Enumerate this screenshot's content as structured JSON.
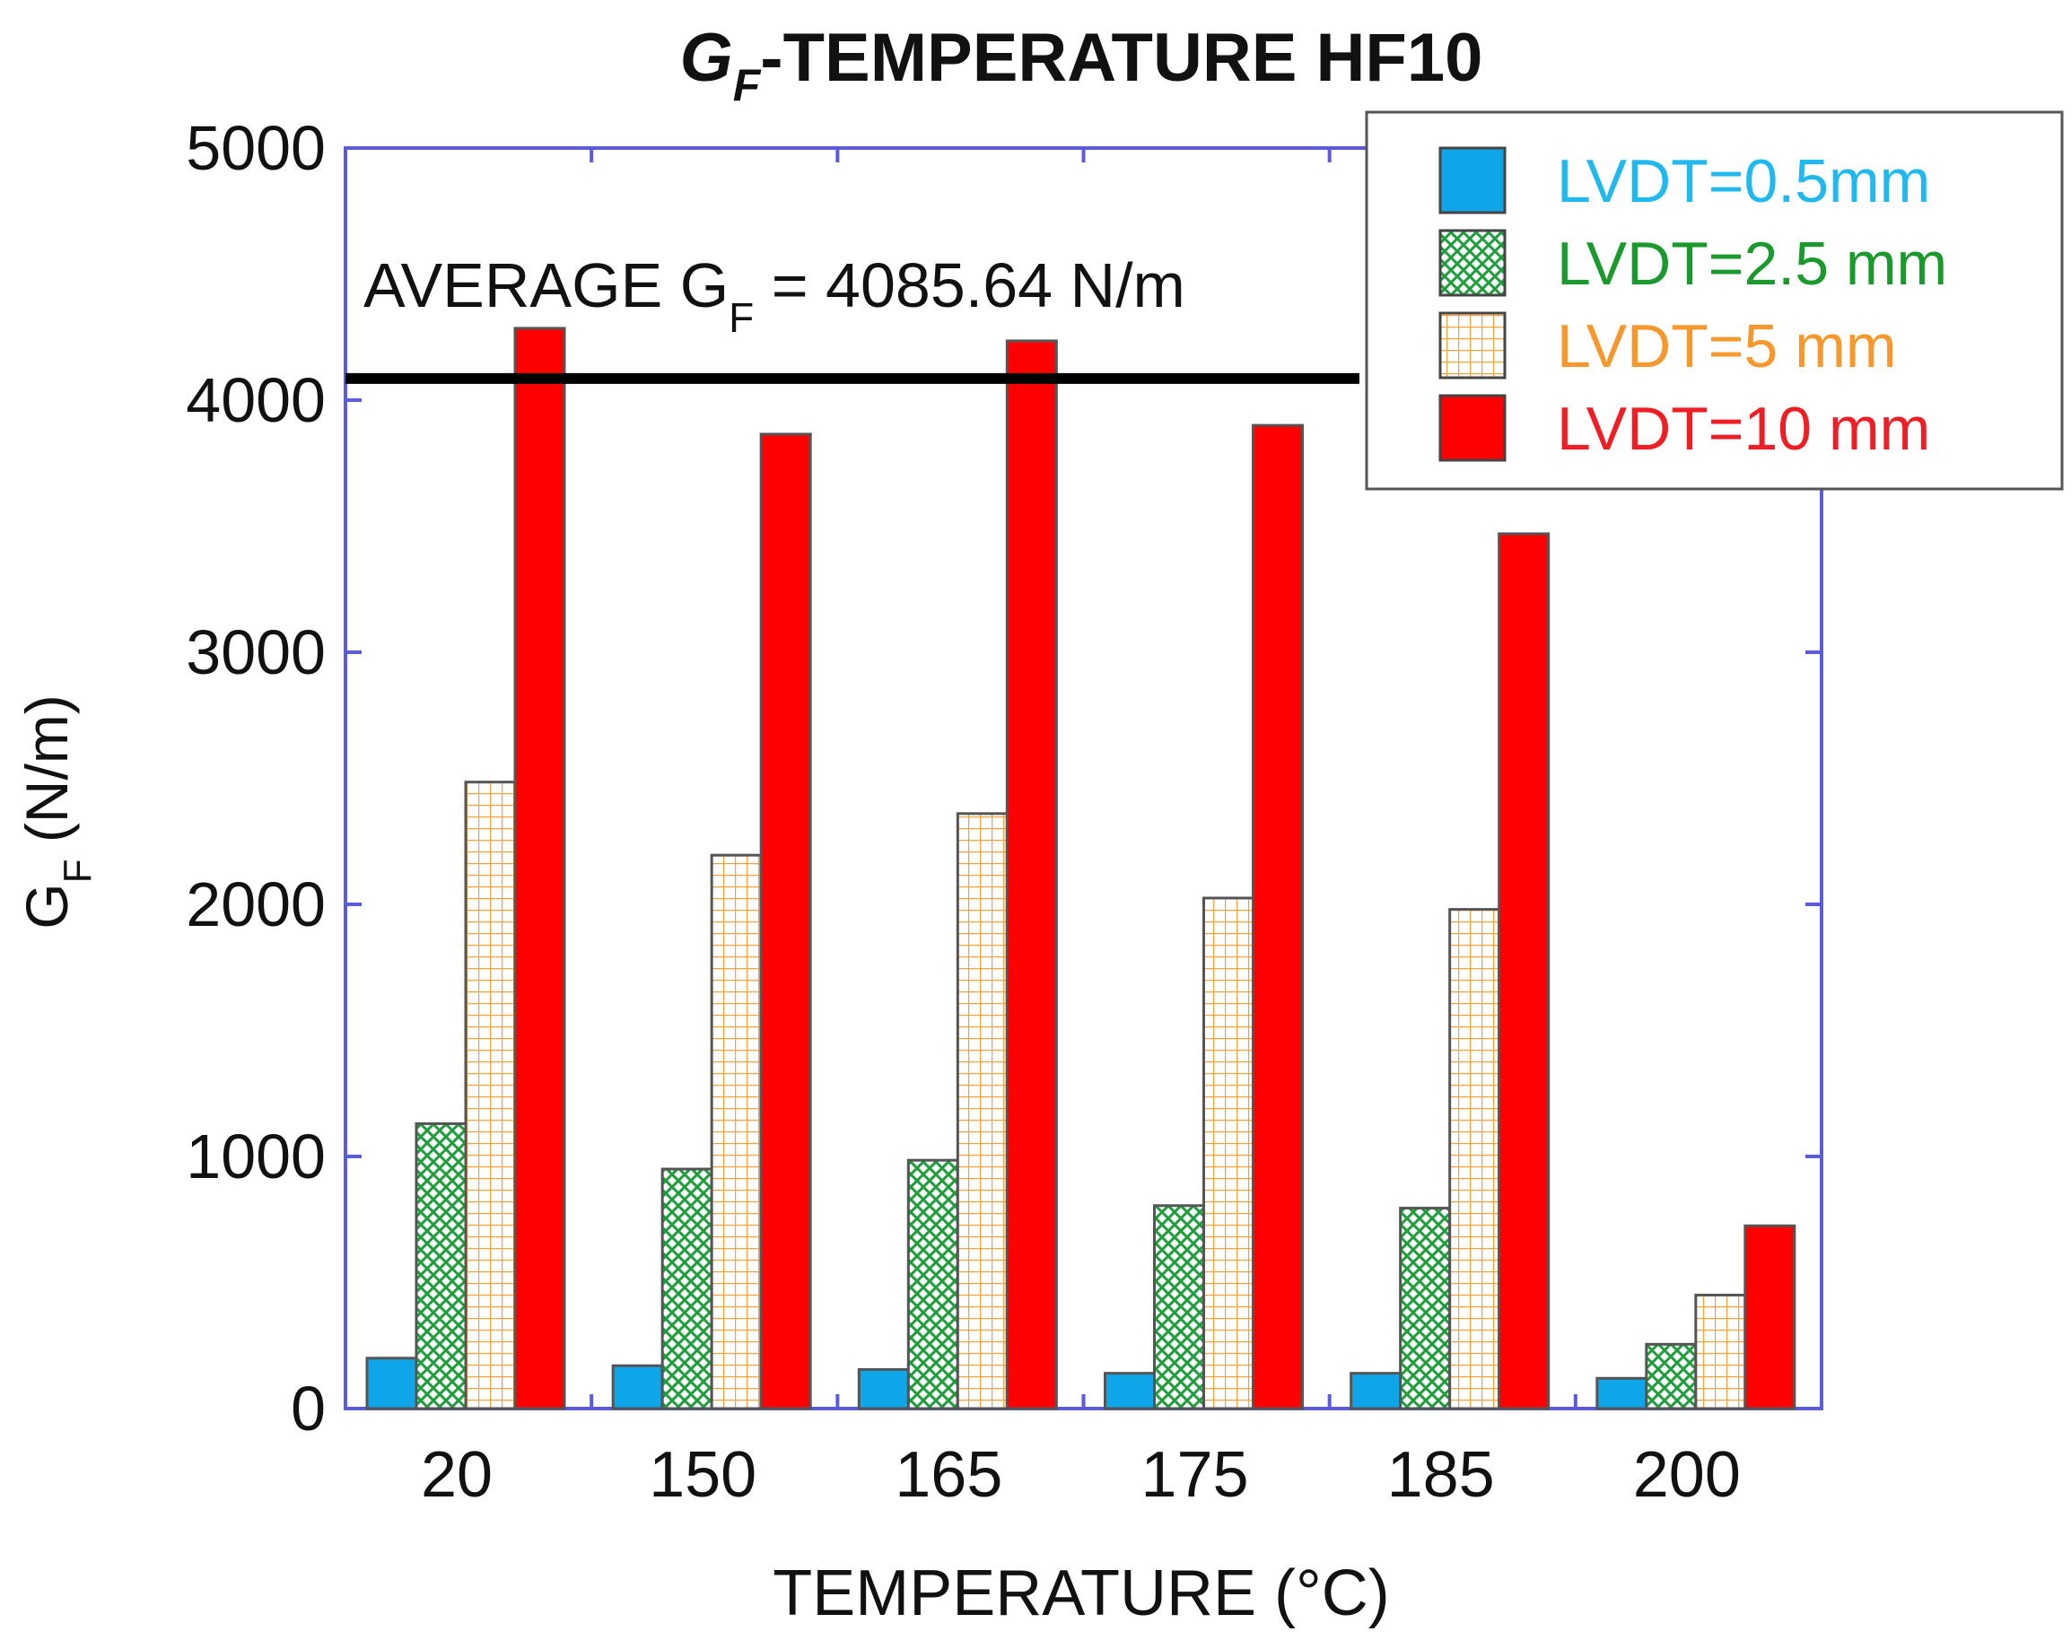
{
  "chart_data": {
    "type": "bar",
    "title_main": "G",
    "title_sub": "F",
    "title_rest": "-TEMPERATURE HF10",
    "xlabel": "TEMPERATURE (°C)",
    "ylabel_main": "G",
    "ylabel_sub": "F",
    "ylabel_rest": " (N/m)",
    "categories": [
      "20",
      "150",
      "165",
      "175",
      "185",
      "200"
    ],
    "ylim": [
      0,
      5000
    ],
    "yticks": [
      0,
      1000,
      2000,
      3000,
      4000,
      5000
    ],
    "series": [
      {
        "name": "LVDT=0.5mm",
        "color": "#0ea5e9",
        "text_color": "#1fb9ee",
        "pattern": "solid",
        "values": [
          200,
          170,
          155,
          140,
          140,
          120
        ]
      },
      {
        "name": "LVDT=2.5 mm",
        "color": "#16a34a",
        "text_color": "#1a9a2c",
        "pattern": "crosshatch",
        "values": [
          1130,
          950,
          985,
          805,
          795,
          255
        ]
      },
      {
        "name": "LVDT=5 mm",
        "color": "#f59e0b",
        "text_color": "#f7982c",
        "pattern": "grid",
        "values": [
          2485,
          2195,
          2360,
          2025,
          1980,
          450
        ]
      },
      {
        "name": "LVDT=10 mm",
        "color": "#ff0000",
        "text_color": "#ef1d24",
        "pattern": "solid",
        "values": [
          4285,
          3865,
          4235,
          3900,
          3470,
          725
        ]
      }
    ],
    "reference_line": {
      "value": 4085.64,
      "label_prefix": "AVERAGE G",
      "label_sub": "F",
      "label_suffix": " = 4085.64 N/m"
    },
    "legend_position": "top-right",
    "grid": false
  }
}
